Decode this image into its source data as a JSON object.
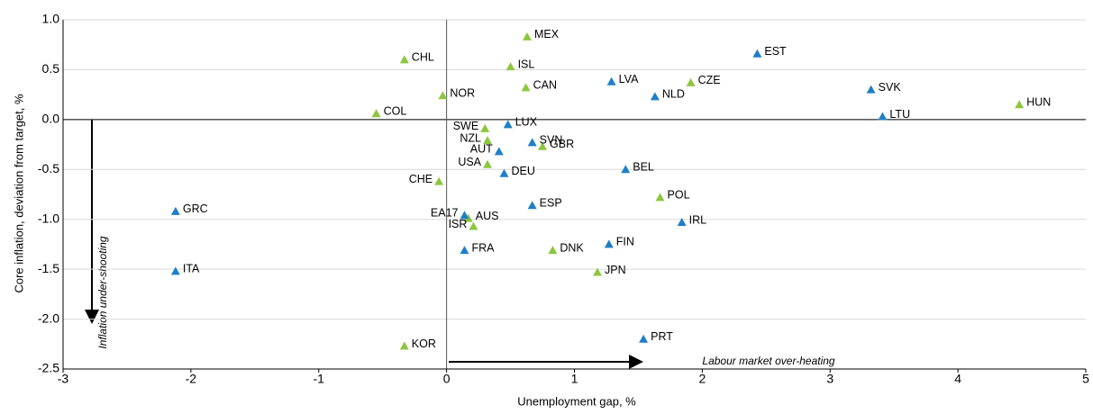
{
  "chart_data": {
    "type": "scatter",
    "x_label": "Unemployment gap, %",
    "y_label": "Core inflation, deviation from target, %",
    "annotations": [
      "Inflation under-shooting",
      "Labour market over-heating"
    ],
    "xlim": [
      -3,
      5
    ],
    "ylim": [
      -2.5,
      1.0
    ],
    "xticks": [
      -3,
      -2,
      -1,
      {
        "value": 0,
        "label": "0"
      },
      1,
      2,
      3,
      4,
      5
    ],
    "yticks": [
      {
        "value": 1.0,
        "label": "1.0"
      },
      0.5,
      {
        "value": 0,
        "label": "0.0"
      },
      -0.5,
      {
        "value": -1.0,
        "label": "-1.0"
      },
      -1.5,
      {
        "value": -2.0,
        "label": "-2.0"
      },
      -2.5
    ],
    "grid": true,
    "series": [
      {
        "color": "#8dc63f",
        "labels": [
          "MEX",
          "CHL",
          "ISL",
          "CAN",
          "CZE",
          "NOR",
          "COL",
          "HUN",
          "SWE",
          "NZL",
          "GBR",
          "USA",
          "CHE",
          "POL",
          "AUS",
          "ISR",
          "DNK",
          "JPN",
          "KOR"
        ],
        "x": [
          0.63,
          -0.33,
          0.5,
          0.62,
          1.91,
          -0.03,
          -0.55,
          4.48,
          0.3,
          0.32,
          0.75,
          0.32,
          -0.06,
          1.67,
          0.17,
          0.21,
          0.83,
          1.18,
          -0.33
        ],
        "values": [
          0.83,
          0.6,
          0.53,
          0.32,
          0.37,
          0.24,
          0.06,
          0.15,
          -0.09,
          -0.21,
          -0.27,
          -0.45,
          -0.62,
          -0.78,
          -0.99,
          -1.07,
          -1.31,
          -1.53,
          -2.27
        ]
      },
      {
        "color": "#1f7fc6",
        "labels": [
          "EST",
          "LVA",
          "NLD",
          "SVK",
          "LTU",
          "LUX",
          "SVN",
          "AUT",
          "DEU",
          "BEL",
          "ESP",
          "GRC",
          "EA17",
          "IRL",
          "FIN",
          "FRA",
          "ITA",
          "PRT"
        ],
        "x": [
          2.43,
          1.29,
          1.63,
          3.32,
          3.41,
          0.48,
          0.67,
          0.41,
          0.45,
          1.4,
          0.67,
          -2.12,
          0.14,
          1.84,
          1.27,
          0.14,
          -2.12,
          1.54
        ],
        "values": [
          0.66,
          0.38,
          0.23,
          0.3,
          0.03,
          -0.05,
          -0.23,
          -0.32,
          -0.54,
          -0.5,
          -0.86,
          -0.92,
          -0.96,
          -1.03,
          -1.25,
          -1.31,
          -1.52,
          -2.2
        ]
      }
    ]
  }
}
